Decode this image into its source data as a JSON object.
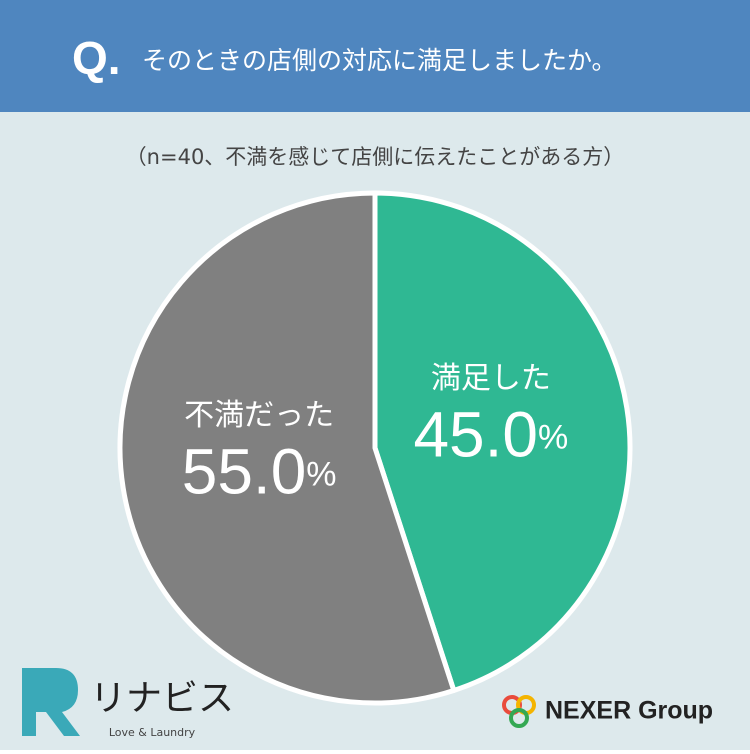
{
  "chart_data": {
    "type": "pie",
    "q_label": "Q.",
    "title": "そのときの店側の対応に満足しましたか。",
    "subtitle": "（n=40、不満を感じて店側に伝えたことがある方）",
    "categories": [
      "満足した",
      "不満だった"
    ],
    "values": [
      45.0,
      55.0
    ],
    "value_labels": [
      "45.0%",
      "55.0%"
    ],
    "colors": [
      "#2fb893",
      "#808080"
    ]
  },
  "logos": {
    "brand": "リナビス",
    "brand_tagline": "Love & Laundry",
    "group": "NEXER Group"
  }
}
